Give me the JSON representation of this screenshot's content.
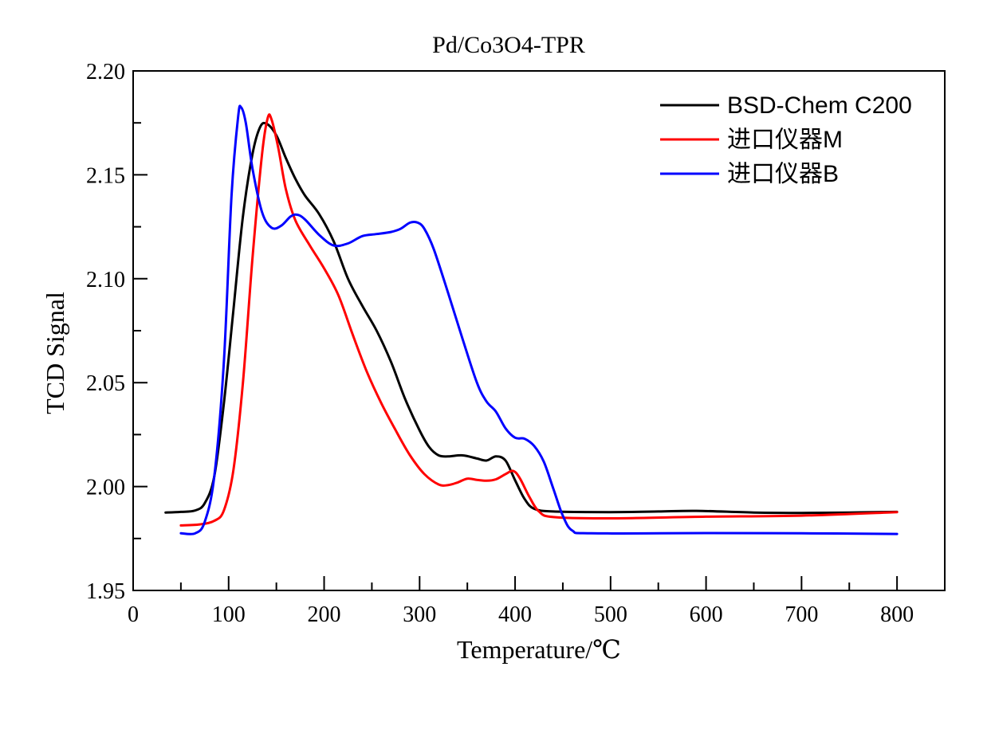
{
  "chart_data": {
    "type": "line",
    "title": "Pd/Co3O4-TPR",
    "xlabel": "Temperature/℃",
    "ylabel": "TCD Signal",
    "xlim": [
      0,
      850
    ],
    "ylim": [
      1.95,
      2.2
    ],
    "xticks": [
      0,
      100,
      200,
      300,
      400,
      500,
      600,
      700,
      800
    ],
    "xtick_labels": [
      "0",
      "100",
      "200",
      "300",
      "400",
      "500",
      "600",
      "700",
      "800"
    ],
    "yticks": [
      1.95,
      2.0,
      2.05,
      2.1,
      2.15,
      2.2
    ],
    "ytick_labels": [
      "1.95",
      "2.00",
      "2.05",
      "2.10",
      "2.15",
      "2.20"
    ],
    "grid": false,
    "legend_position": "top-right",
    "series": [
      {
        "name": "BSD-Chem C200",
        "color": "#000000",
        "points": [
          [
            34,
            1.9875
          ],
          [
            50,
            1.9878
          ],
          [
            65,
            1.9885
          ],
          [
            75,
            1.992
          ],
          [
            85,
            2.005
          ],
          [
            95,
            2.04
          ],
          [
            105,
            2.085
          ],
          [
            115,
            2.13
          ],
          [
            125,
            2.16
          ],
          [
            133,
            2.173
          ],
          [
            140,
            2.1745
          ],
          [
            150,
            2.169
          ],
          [
            160,
            2.158
          ],
          [
            170,
            2.148
          ],
          [
            180,
            2.14
          ],
          [
            195,
            2.131
          ],
          [
            210,
            2.118
          ],
          [
            225,
            2.1
          ],
          [
            240,
            2.087
          ],
          [
            255,
            2.075
          ],
          [
            270,
            2.06
          ],
          [
            285,
            2.042
          ],
          [
            300,
            2.027
          ],
          [
            310,
            2.019
          ],
          [
            320,
            2.015
          ],
          [
            330,
            2.0145
          ],
          [
            345,
            2.015
          ],
          [
            360,
            2.0135
          ],
          [
            370,
            2.0125
          ],
          [
            380,
            2.0145
          ],
          [
            390,
            2.0125
          ],
          [
            400,
            2.003
          ],
          [
            410,
            1.994
          ],
          [
            420,
            1.9893
          ],
          [
            440,
            1.988
          ],
          [
            500,
            1.9877
          ],
          [
            550,
            1.988
          ],
          [
            590,
            1.9883
          ],
          [
            650,
            1.9875
          ],
          [
            700,
            1.9873
          ],
          [
            750,
            1.9875
          ],
          [
            800,
            1.9878
          ]
        ]
      },
      {
        "name": "进口仪器M",
        "color": "#ff0000",
        "points": [
          [
            50,
            1.9813
          ],
          [
            70,
            1.9818
          ],
          [
            85,
            1.9835
          ],
          [
            95,
            1.9885
          ],
          [
            105,
            2.008
          ],
          [
            115,
            2.05
          ],
          [
            125,
            2.11
          ],
          [
            135,
            2.16
          ],
          [
            141,
            2.1775
          ],
          [
            145,
            2.1765
          ],
          [
            152,
            2.163
          ],
          [
            160,
            2.143
          ],
          [
            170,
            2.128
          ],
          [
            185,
            2.116
          ],
          [
            200,
            2.105
          ],
          [
            215,
            2.092
          ],
          [
            230,
            2.073
          ],
          [
            245,
            2.055
          ],
          [
            260,
            2.04
          ],
          [
            275,
            2.027
          ],
          [
            290,
            2.015
          ],
          [
            305,
            2.006
          ],
          [
            320,
            2.001
          ],
          [
            330,
            2.0007
          ],
          [
            340,
            2.002
          ],
          [
            350,
            2.0038
          ],
          [
            360,
            2.0032
          ],
          [
            370,
            2.0028
          ],
          [
            380,
            2.0035
          ],
          [
            390,
            2.006
          ],
          [
            398,
            2.0075
          ],
          [
            405,
            2.004
          ],
          [
            415,
            1.995
          ],
          [
            425,
            1.988
          ],
          [
            440,
            1.9853
          ],
          [
            500,
            1.9847
          ],
          [
            600,
            1.9855
          ],
          [
            700,
            1.986
          ],
          [
            800,
            1.9877
          ]
        ]
      },
      {
        "name": "进口仪器B",
        "color": "#0000ff",
        "points": [
          [
            50,
            1.9775
          ],
          [
            65,
            1.9775
          ],
          [
            75,
            1.983
          ],
          [
            85,
            2.005
          ],
          [
            95,
            2.06
          ],
          [
            103,
            2.14
          ],
          [
            110,
            2.178
          ],
          [
            113,
            2.1825
          ],
          [
            118,
            2.175
          ],
          [
            125,
            2.153
          ],
          [
            135,
            2.132
          ],
          [
            145,
            2.1245
          ],
          [
            155,
            2.1255
          ],
          [
            165,
            2.13
          ],
          [
            172,
            2.1308
          ],
          [
            180,
            2.1285
          ],
          [
            195,
            2.121
          ],
          [
            210,
            2.116
          ],
          [
            225,
            2.117
          ],
          [
            240,
            2.1205
          ],
          [
            255,
            2.1215
          ],
          [
            270,
            2.1225
          ],
          [
            280,
            2.124
          ],
          [
            290,
            2.127
          ],
          [
            298,
            2.127
          ],
          [
            305,
            2.124
          ],
          [
            315,
            2.114
          ],
          [
            330,
            2.093
          ],
          [
            345,
            2.071
          ],
          [
            360,
            2.05
          ],
          [
            370,
            2.041
          ],
          [
            380,
            2.036
          ],
          [
            390,
            2.028
          ],
          [
            400,
            2.0235
          ],
          [
            410,
            2.023
          ],
          [
            420,
            2.0195
          ],
          [
            430,
            2.012
          ],
          [
            440,
            1.999
          ],
          [
            450,
            1.986
          ],
          [
            460,
            1.9788
          ],
          [
            480,
            1.9775
          ],
          [
            600,
            1.9776
          ],
          [
            700,
            1.9775
          ],
          [
            800,
            1.9772
          ]
        ]
      }
    ]
  }
}
